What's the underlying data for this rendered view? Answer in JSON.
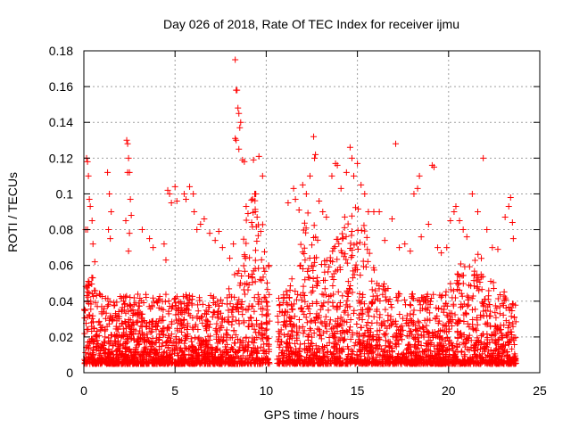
{
  "chart_data": {
    "type": "scatter",
    "title": "Day 026 of 2018, Rate Of TEC Index for receiver ijmu",
    "xlabel": "GPS time / hours",
    "ylabel": "ROTI / TECUs",
    "xlim": [
      0,
      25
    ],
    "ylim": [
      0,
      0.18
    ],
    "xticks": [
      0,
      5,
      10,
      15,
      20,
      25
    ],
    "yticks": [
      0,
      0.02,
      0.04,
      0.06,
      0.08,
      0.1,
      0.12,
      0.14,
      0.16,
      0.18
    ],
    "ytick_labels": [
      "0",
      "0.02",
      "0.04",
      "0.06",
      "0.08",
      "0.1",
      "0.12",
      "0.14",
      "0.16",
      "0.18"
    ],
    "grid": true,
    "marker": "+",
    "color": "#ff0000",
    "series": [
      {
        "name": "ROTI",
        "data_gap_hours": [
          10.2,
          10.6
        ],
        "points": [
          [
            8.3,
            0.175
          ],
          [
            8.35,
            0.158
          ],
          [
            8.4,
            0.158
          ],
          [
            8.45,
            0.148
          ],
          [
            8.5,
            0.145
          ],
          [
            8.3,
            0.131
          ],
          [
            8.35,
            0.13
          ],
          [
            8.6,
            0.14
          ],
          [
            8.55,
            0.137
          ],
          [
            8.5,
            0.125
          ],
          [
            8.7,
            0.119
          ],
          [
            8.8,
            0.118
          ],
          [
            9.3,
            0.119
          ],
          [
            9.6,
            0.121
          ],
          [
            9.8,
            0.11
          ],
          [
            0.15,
            0.12
          ],
          [
            0.2,
            0.118
          ],
          [
            0.25,
            0.11
          ],
          [
            0.3,
            0.097
          ],
          [
            0.35,
            0.093
          ],
          [
            0.1,
            0.08
          ],
          [
            0.2,
            0.08
          ],
          [
            0.45,
            0.085
          ],
          [
            0.5,
            0.072
          ],
          [
            0.6,
            0.062
          ],
          [
            1.3,
            0.112
          ],
          [
            1.4,
            0.1
          ],
          [
            1.5,
            0.09
          ],
          [
            1.35,
            0.08
          ],
          [
            1.45,
            0.075
          ],
          [
            2.35,
            0.13
          ],
          [
            2.4,
            0.128
          ],
          [
            2.45,
            0.12
          ],
          [
            2.4,
            0.112
          ],
          [
            2.5,
            0.112
          ],
          [
            2.55,
            0.097
          ],
          [
            2.6,
            0.088
          ],
          [
            2.3,
            0.085
          ],
          [
            2.5,
            0.078
          ],
          [
            2.45,
            0.068
          ],
          [
            3.2,
            0.08
          ],
          [
            3.6,
            0.075
          ],
          [
            3.8,
            0.07
          ],
          [
            4.4,
            0.072
          ],
          [
            4.5,
            0.063
          ],
          [
            4.6,
            0.102
          ],
          [
            4.7,
            0.1
          ],
          [
            4.8,
            0.095
          ],
          [
            5.0,
            0.104
          ],
          [
            5.1,
            0.096
          ],
          [
            5.5,
            0.1
          ],
          [
            5.6,
            0.097
          ],
          [
            5.8,
            0.104
          ],
          [
            6.0,
            0.1
          ],
          [
            6.05,
            0.09
          ],
          [
            6.2,
            0.08
          ],
          [
            6.4,
            0.083
          ],
          [
            6.6,
            0.086
          ],
          [
            6.9,
            0.078
          ],
          [
            7.2,
            0.074
          ],
          [
            7.4,
            0.079
          ],
          [
            7.6,
            0.07
          ],
          [
            8.0,
            0.064
          ],
          [
            8.2,
            0.072
          ],
          [
            8.9,
            0.093
          ],
          [
            9.0,
            0.089
          ],
          [
            9.2,
            0.084
          ],
          [
            9.4,
            0.09
          ],
          [
            9.5,
            0.087
          ],
          [
            9.7,
            0.079
          ],
          [
            11.2,
            0.095
          ],
          [
            11.5,
            0.103
          ],
          [
            11.6,
            0.097
          ],
          [
            11.8,
            0.091
          ],
          [
            12.0,
            0.105
          ],
          [
            12.2,
            0.1
          ],
          [
            12.4,
            0.11
          ],
          [
            12.6,
            0.132
          ],
          [
            12.7,
            0.122
          ],
          [
            12.65,
            0.12
          ],
          [
            12.9,
            0.096
          ],
          [
            13.1,
            0.09
          ],
          [
            13.3,
            0.087
          ],
          [
            13.6,
            0.11
          ],
          [
            13.8,
            0.117
          ],
          [
            13.9,
            0.116
          ],
          [
            14.1,
            0.103
          ],
          [
            14.4,
            0.112
          ],
          [
            14.6,
            0.126
          ],
          [
            14.7,
            0.12
          ],
          [
            14.8,
            0.11
          ],
          [
            15.0,
            0.117
          ],
          [
            15.2,
            0.105
          ],
          [
            15.4,
            0.1
          ],
          [
            15.6,
            0.09
          ],
          [
            15.9,
            0.09
          ],
          [
            16.2,
            0.09
          ],
          [
            16.5,
            0.074
          ],
          [
            16.9,
            0.086
          ],
          [
            17.1,
            0.128
          ],
          [
            17.3,
            0.07
          ],
          [
            17.6,
            0.072
          ],
          [
            17.9,
            0.068
          ],
          [
            18.1,
            0.1
          ],
          [
            18.3,
            0.103
          ],
          [
            18.4,
            0.11
          ],
          [
            18.5,
            0.076
          ],
          [
            18.9,
            0.083
          ],
          [
            19.1,
            0.116
          ],
          [
            19.2,
            0.115
          ],
          [
            19.4,
            0.07
          ],
          [
            19.6,
            0.067
          ],
          [
            19.9,
            0.07
          ],
          [
            20.1,
            0.085
          ],
          [
            20.3,
            0.09
          ],
          [
            20.4,
            0.093
          ],
          [
            20.6,
            0.085
          ],
          [
            20.8,
            0.08
          ],
          [
            21.0,
            0.076
          ],
          [
            21.3,
            0.1
          ],
          [
            21.6,
            0.09
          ],
          [
            21.9,
            0.12
          ],
          [
            22.1,
            0.08
          ],
          [
            22.4,
            0.07
          ],
          [
            22.7,
            0.069
          ],
          [
            23.1,
            0.087
          ],
          [
            23.3,
            0.093
          ],
          [
            23.4,
            0.098
          ],
          [
            23.5,
            0.084
          ],
          [
            23.55,
            0.075
          ]
        ]
      }
    ]
  }
}
